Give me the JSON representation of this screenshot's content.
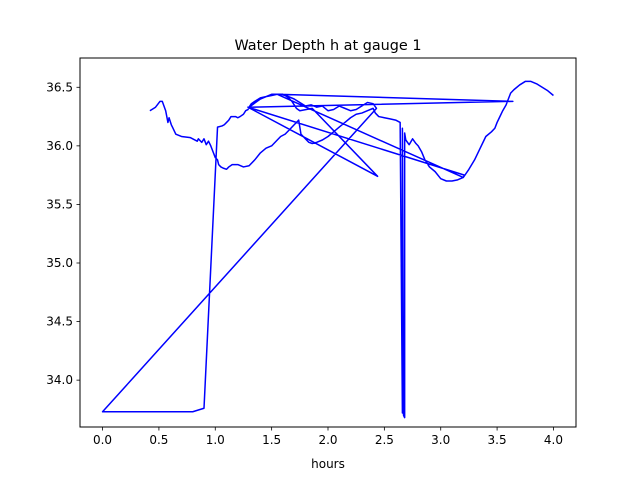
{
  "chart_data": {
    "type": "line",
    "title": "Water Depth h at gauge 1",
    "xlabel": "hours",
    "ylabel": "",
    "xlim": [
      -0.2,
      4.2
    ],
    "ylim": [
      33.6,
      36.75
    ],
    "x_ticks": [
      0.0,
      0.5,
      1.0,
      1.5,
      2.0,
      2.5,
      3.0,
      3.5,
      4.0
    ],
    "x_tick_labels": [
      "0.0",
      "0.5",
      "1.0",
      "1.5",
      "2.0",
      "2.5",
      "3.0",
      "3.5",
      "4.0"
    ],
    "y_ticks": [
      34.0,
      34.5,
      35.0,
      35.5,
      36.0,
      36.5
    ],
    "y_tick_labels": [
      "34.0",
      "34.5",
      "35.0",
      "35.5",
      "36.0",
      "36.5"
    ],
    "grid": false,
    "legend": "none",
    "line_color": "#0000ff",
    "series": [
      {
        "x": [
          0.42,
          0.47,
          0.51,
          0.53,
          0.56,
          0.58,
          0.59,
          0.61,
          0.62,
          0.65,
          0.7,
          0.78,
          0.84,
          0.85,
          0.88,
          0.9,
          0.92,
          0.94,
          0.96,
          0.98,
          1.0,
          1.02,
          1.03,
          1.05,
          1.07,
          1.1,
          1.12,
          1.15,
          1.2,
          1.25,
          1.3,
          1.35,
          1.4,
          1.45,
          1.5,
          1.55,
          1.58,
          1.62,
          1.66,
          1.7,
          1.74,
          1.76,
          1.78,
          1.8,
          1.83,
          1.86,
          1.9,
          1.95,
          2.0,
          2.05,
          2.1,
          2.15,
          2.2,
          2.25,
          2.3,
          2.35,
          2.4,
          2.42,
          2.45,
          2.5,
          2.55,
          2.6,
          2.64,
          2.66,
          2.66,
          2.67,
          2.68,
          2.68,
          2.69,
          2.72,
          2.75,
          2.78,
          2.8,
          2.83,
          2.86,
          2.9,
          2.95,
          3.0,
          3.05,
          3.1,
          3.15,
          3.2,
          3.21,
          1.29,
          2.44,
          1.86,
          1.75,
          1.72,
          1.68,
          1.65,
          1.62,
          1.58,
          1.55,
          1.5,
          1.45,
          1.4,
          1.35,
          1.32,
          1.3,
          1.29,
          1.27,
          1.25,
          1.22,
          1.2,
          1.18,
          1.14,
          1.12,
          1.1,
          1.08,
          1.06,
          1.02,
          0.9,
          0.8,
          0.6,
          0.4,
          0.2,
          0.1,
          0.0,
          2.43,
          2.4,
          2.35,
          2.3,
          2.25,
          2.2,
          2.15,
          2.1,
          2.05,
          2.0,
          1.95,
          1.9,
          1.85,
          1.8,
          1.75,
          1.7,
          1.6,
          1.5,
          1.4,
          1.3,
          3.64,
          1.55,
          3.2,
          3.25,
          3.3,
          3.35,
          3.4,
          3.45,
          3.48,
          3.5,
          3.52,
          3.55,
          3.58,
          3.6,
          3.62,
          3.65,
          3.7,
          3.75,
          3.8,
          3.85,
          3.9,
          3.95,
          4.0
        ],
        "y": [
          36.3,
          36.33,
          36.38,
          36.38,
          36.3,
          36.2,
          36.24,
          36.18,
          36.16,
          36.1,
          36.08,
          36.07,
          36.04,
          36.06,
          36.03,
          36.06,
          36.01,
          36.04,
          36.0,
          35.95,
          35.9,
          35.88,
          35.84,
          35.82,
          35.81,
          35.8,
          35.82,
          35.84,
          35.84,
          35.82,
          35.83,
          35.88,
          35.94,
          35.98,
          36.0,
          36.05,
          36.08,
          36.1,
          36.14,
          36.18,
          36.22,
          36.1,
          36.08,
          36.06,
          36.03,
          36.02,
          36.03,
          36.05,
          36.08,
          36.12,
          36.16,
          36.2,
          36.24,
          36.27,
          36.28,
          36.3,
          36.32,
          36.28,
          36.25,
          36.24,
          36.23,
          36.22,
          36.2,
          33.72,
          36.15,
          33.7,
          33.68,
          36.11,
          36.05,
          36.01,
          36.06,
          36.02,
          36.0,
          35.95,
          35.88,
          35.82,
          35.78,
          35.72,
          35.7,
          35.7,
          35.71,
          35.73,
          35.75,
          36.33,
          35.74,
          36.32,
          36.3,
          36.32,
          36.38,
          36.41,
          36.43,
          36.44,
          36.44,
          36.43,
          36.42,
          36.41,
          36.38,
          36.36,
          36.33,
          36.31,
          36.3,
          36.27,
          36.25,
          36.24,
          36.25,
          36.25,
          36.22,
          36.2,
          36.18,
          36.17,
          36.16,
          33.76,
          33.73,
          33.73,
          33.73,
          33.73,
          33.73,
          33.73,
          36.32,
          36.36,
          36.37,
          36.34,
          36.31,
          36.3,
          36.32,
          36.34,
          36.31,
          36.3,
          36.34,
          36.33,
          36.35,
          36.34,
          36.37,
          36.4,
          36.44,
          36.44,
          36.4,
          36.33,
          36.38,
          36.44,
          35.73,
          35.8,
          35.88,
          35.98,
          36.08,
          36.12,
          36.15,
          36.2,
          36.24,
          36.3,
          36.35,
          36.4,
          36.45,
          36.48,
          36.52,
          36.55,
          36.55,
          36.53,
          36.5,
          36.47,
          36.43
        ]
      }
    ]
  }
}
